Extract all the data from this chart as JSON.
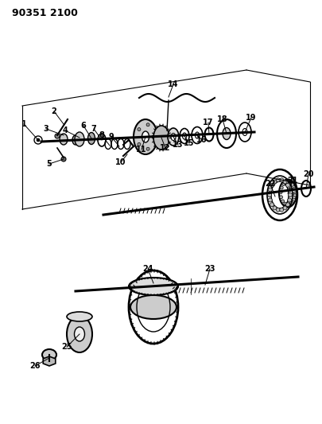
{
  "title": "90351 2100",
  "background_color": "#ffffff",
  "line_color": "#000000",
  "part_color": "#555555",
  "light_gray": "#aaaaaa",
  "medium_gray": "#888888",
  "dark_gray": "#333333"
}
